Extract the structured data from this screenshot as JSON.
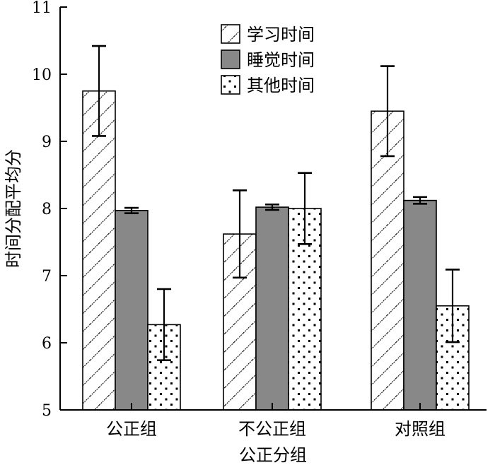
{
  "chart_data": {
    "type": "bar",
    "title": "",
    "xlabel": "公正分组",
    "ylabel": "时间分配平均分",
    "ylim": [
      5,
      11
    ],
    "yticks": [
      "5",
      "6",
      "7",
      "8",
      "9",
      "10",
      "11"
    ],
    "categories": [
      "公正组",
      "不公正组",
      "对照组"
    ],
    "series": [
      {
        "name": "学习时间",
        "pattern": "diagonal-hatch",
        "values": [
          9.75,
          7.62,
          9.45
        ],
        "error": [
          0.67,
          0.65,
          0.67
        ]
      },
      {
        "name": "睡觉时间",
        "pattern": "solid-gray",
        "values": [
          7.97,
          8.02,
          8.12
        ],
        "error": [
          0.04,
          0.04,
          0.05
        ]
      },
      {
        "name": "其他时间",
        "pattern": "dots",
        "values": [
          6.27,
          8.0,
          6.55
        ],
        "error": [
          0.53,
          0.53,
          0.54
        ]
      }
    ],
    "legend_position": "top-center",
    "grid": false,
    "colors": {
      "bar_fill_gray": "#888888",
      "stroke": "#000000",
      "background": "#ffffff"
    }
  }
}
